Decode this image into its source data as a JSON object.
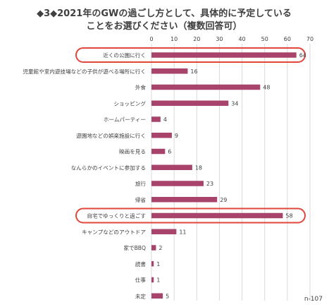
{
  "chart_data": {
    "type": "bar",
    "orientation": "horizontal",
    "title_lines": [
      "◆3◆2021年のGWの過ごし方として、具体的に予定している",
      "ことをお選びください（複数回答可）"
    ],
    "categories": [
      "近くの公園に行く",
      "児童館や室内遊技場などの子供が遊べる場所に行く",
      "外食",
      "ショッピング",
      "ホームパーティー",
      "遊園地などの娯楽施設に行く",
      "映画を見る",
      "なんらかのイベントに参加する",
      "旅行",
      "帰省",
      "自宅でゆっくりと過ごす",
      "キャンプなどのアウトドア",
      "家でBBQ",
      "読書",
      "仕事",
      "未定"
    ],
    "values": [
      64,
      16,
      48,
      34,
      4,
      9,
      6,
      18,
      23,
      29,
      58,
      11,
      2,
      1,
      1,
      5
    ],
    "xlim": [
      0,
      70
    ],
    "xticks": [
      0,
      10,
      20,
      30,
      40,
      50,
      60,
      70
    ],
    "grid": true,
    "highlighted": [
      "近くの公園に行く",
      "自宅でゆっくりと過ごす"
    ],
    "note": "n-107",
    "bar_color": "#a8436b",
    "highlight_color": "#e0463a",
    "grid_color": "#d9d9d9"
  }
}
